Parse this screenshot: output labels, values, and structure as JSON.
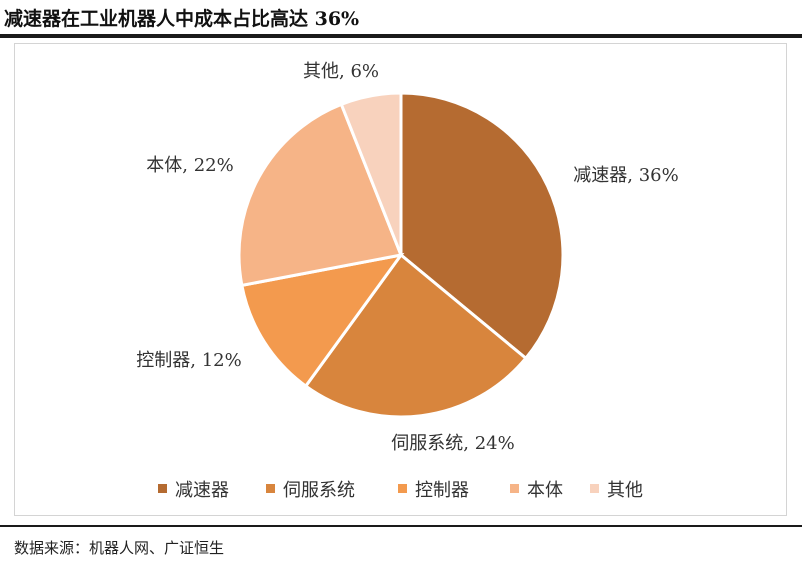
{
  "header": {
    "title": "减速器在工业机器人中成本占比高达 36%"
  },
  "footer": {
    "source": "数据来源：机器人网、广证恒生"
  },
  "chart_data": {
    "type": "pie",
    "title": "",
    "slices": [
      {
        "name": "减速器",
        "value": 36,
        "label": "减速器, 36%",
        "color": "#B56B31"
      },
      {
        "name": "伺服系统",
        "value": 24,
        "label": "伺服系统, 24%",
        "color": "#D8853D"
      },
      {
        "name": "控制器",
        "value": 12,
        "label": "控制器, 12%",
        "color": "#F39A4E"
      },
      {
        "name": "本体",
        "value": 22,
        "label": "本体, 22%",
        "color": "#F6B487"
      },
      {
        "name": "其他",
        "value": 6,
        "label": "其他, 6%",
        "color": "#F8D2BD"
      }
    ],
    "legend": {
      "position": "bottom"
    }
  }
}
